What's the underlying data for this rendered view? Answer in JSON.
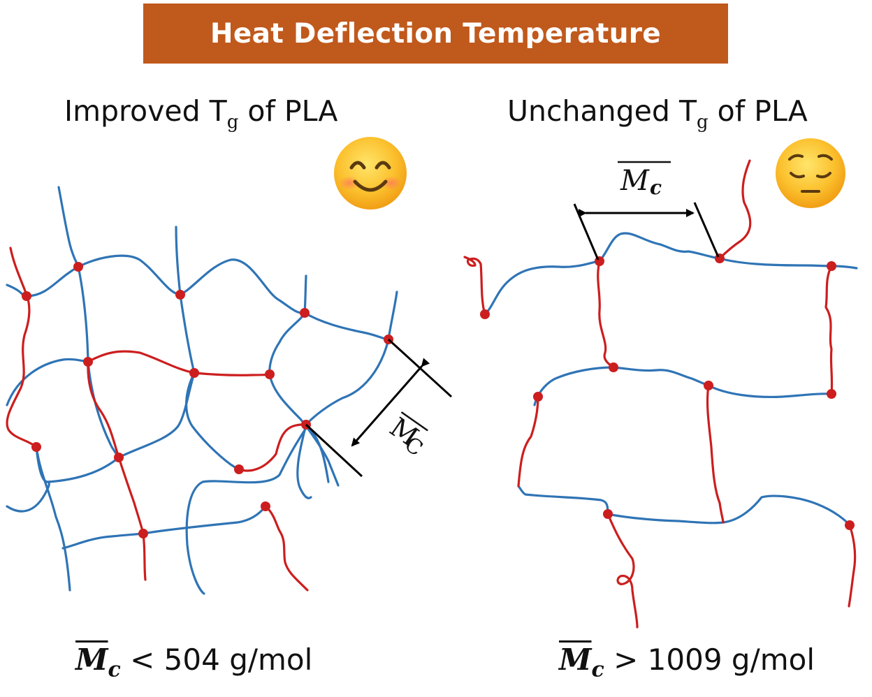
{
  "banner": {
    "title": "Heat Deflection Temperature"
  },
  "left_panel": {
    "title_main": "Improved T",
    "title_sub": "g",
    "title_rest": " of PLA",
    "mc_label": "M",
    "mc_label_sub": "C",
    "footer_symbol": "M",
    "footer_symbol_sub": "c",
    "footer_text": " < 504 g/mol",
    "emoji_icon": "smiling-face-icon"
  },
  "right_panel": {
    "title_main": "Unchanged T",
    "title_sub": "g",
    "title_rest": " of PLA",
    "mc_label": "M",
    "mc_label_sub": "c",
    "footer_symbol": "M",
    "footer_symbol_sub": "c",
    "footer_text": " > 1009 g/mol",
    "emoji_icon": "pensive-face-icon"
  },
  "colors": {
    "banner": "#c0591c",
    "chain_blue": "#2f74b5",
    "chain_red": "#cc1e1e",
    "crosslink_node": "#cc1e1e"
  }
}
